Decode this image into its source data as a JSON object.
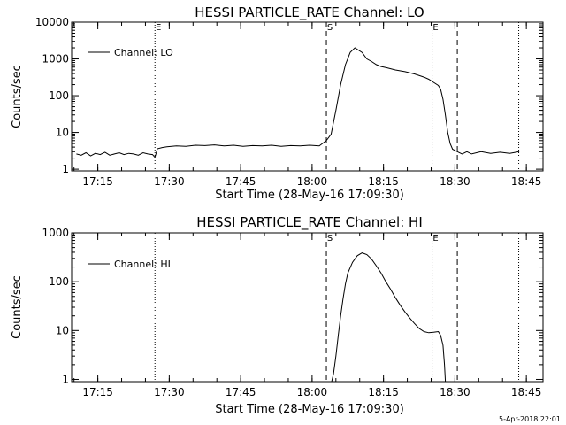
{
  "timestamp": "5-Apr-2018 22:01",
  "chart_data": [
    {
      "type": "line",
      "title": "HESSI PARTICLE_RATE Channel: LO",
      "xlabel": "Start Time (28-May-16 17:09:30)",
      "ylabel": "Counts/sec",
      "yscale": "log",
      "ylim": [
        0.9,
        10000
      ],
      "xlim_minutes": [
        0,
        99
      ],
      "x_unit": "minutes since 17:09:30",
      "xtick_values": [
        5.5,
        20.5,
        35.5,
        50.5,
        65.5,
        80.5,
        95.5
      ],
      "xtick_labels": [
        "17:15",
        "17:30",
        "17:45",
        "18:00",
        "18:15",
        "18:30",
        "18:45"
      ],
      "ytick_values": [
        1,
        10,
        100,
        1000,
        10000
      ],
      "ytick_labels": [
        "1",
        "10",
        "100",
        "1000",
        "10000"
      ],
      "legend": "Channel: LO",
      "legend_position": "upper-left",
      "markers": [
        {
          "x": 17.5,
          "style": "dotted",
          "label": "E"
        },
        {
          "x": 53.5,
          "style": "dashed",
          "label": "S"
        },
        {
          "x": 75.7,
          "style": "dotted",
          "label": "E"
        },
        {
          "x": 81.0,
          "style": "dashed",
          "label": ""
        },
        {
          "x": 93.9,
          "style": "dotted",
          "label": ""
        }
      ],
      "series": [
        {
          "name": "Channel: LO",
          "x": [
            1,
            2,
            3,
            4,
            5,
            6,
            7,
            8,
            9,
            10,
            11,
            12,
            13,
            14,
            15,
            16,
            17,
            17.5,
            18,
            19,
            20,
            22,
            24,
            26,
            28,
            30,
            32,
            34,
            36,
            38,
            40,
            42,
            44,
            46,
            48,
            50,
            52,
            53.5,
            54.5,
            55.5,
            56.5,
            57.5,
            58.5,
            59.5,
            61,
            62,
            63,
            64,
            65,
            66,
            67,
            68,
            70,
            72,
            74,
            75,
            76,
            77,
            77.5,
            78,
            78.5,
            79,
            79.5,
            80,
            81,
            82,
            83,
            84,
            86,
            88,
            90,
            92,
            94
          ],
          "y": [
            2.6,
            2.4,
            2.8,
            2.3,
            2.7,
            2.5,
            2.9,
            2.4,
            2.6,
            2.8,
            2.5,
            2.7,
            2.6,
            2.4,
            2.8,
            2.6,
            2.5,
            2.1,
            3.6,
            3.9,
            4.1,
            4.3,
            4.2,
            4.5,
            4.4,
            4.6,
            4.3,
            4.5,
            4.2,
            4.4,
            4.3,
            4.5,
            4.2,
            4.4,
            4.3,
            4.5,
            4.3,
            6.0,
            9,
            40,
            200,
            700,
            1500,
            2000,
            1500,
            1000,
            850,
            700,
            620,
            580,
            540,
            500,
            450,
            390,
            320,
            280,
            230,
            190,
            150,
            80,
            30,
            10,
            5,
            3.5,
            3.0,
            2.6,
            3.0,
            2.6,
            3.0,
            2.7,
            2.9,
            2.7,
            3.0
          ]
        }
      ]
    },
    {
      "type": "line",
      "title": "HESSI PARTICLE_RATE Channel: HI",
      "xlabel": "Start Time (28-May-16 17:09:30)",
      "ylabel": "Counts/sec",
      "yscale": "log",
      "ylim": [
        0.9,
        1000
      ],
      "xlim_minutes": [
        0,
        99
      ],
      "x_unit": "minutes since 17:09:30",
      "xtick_values": [
        5.5,
        20.5,
        35.5,
        50.5,
        65.5,
        80.5,
        95.5
      ],
      "xtick_labels": [
        "17:15",
        "17:30",
        "17:45",
        "18:00",
        "18:15",
        "18:30",
        "18:45"
      ],
      "ytick_values": [
        1,
        10,
        100,
        1000
      ],
      "ytick_labels": [
        "1",
        "10",
        "100",
        "1000"
      ],
      "legend": "Channel: HI",
      "legend_position": "upper-left",
      "markers": [
        {
          "x": 17.5,
          "style": "dotted",
          "label": ""
        },
        {
          "x": 53.5,
          "style": "dashed",
          "label": "S"
        },
        {
          "x": 75.7,
          "style": "dotted",
          "label": "E"
        },
        {
          "x": 81.0,
          "style": "dashed",
          "label": ""
        },
        {
          "x": 93.9,
          "style": "dotted",
          "label": ""
        }
      ],
      "series": [
        {
          "name": "Channel: HI",
          "x": [
            54.6,
            55,
            55.5,
            56,
            56.5,
            57,
            57.5,
            58,
            59,
            60,
            61,
            62,
            63,
            64,
            65,
            66,
            67,
            68,
            69,
            70,
            71,
            72,
            73,
            74,
            75,
            76,
            77,
            77.5,
            78,
            78.3,
            78.5
          ],
          "y": [
            0.9,
            1.3,
            3,
            8,
            20,
            45,
            90,
            150,
            250,
            340,
            390,
            360,
            290,
            210,
            150,
            100,
            70,
            47,
            33,
            24,
            18,
            14,
            11,
            9.5,
            9,
            9.2,
            9.5,
            8,
            5,
            2,
            0.9
          ]
        }
      ]
    }
  ]
}
